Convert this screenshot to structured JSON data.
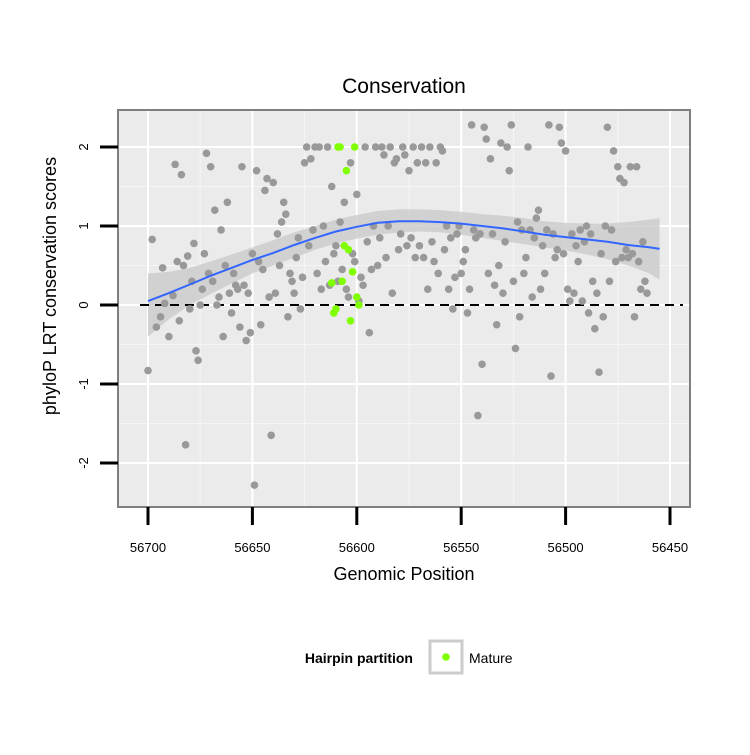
{
  "chart_data": {
    "type": "scatter",
    "title": "Conservation",
    "xlabel": "Genomic Position",
    "ylabel": "phyloP LRT conservation scores",
    "x_reversed": true,
    "xlim": [
      56450,
      56700
    ],
    "ylim": [
      -2.5,
      2.5
    ],
    "x_ticks": [
      56700,
      56650,
      56600,
      56550,
      56500,
      56450
    ],
    "y_ticks": [
      -2,
      -1,
      0,
      1,
      2
    ],
    "reference_line": {
      "y": 0,
      "style": "dashed",
      "color": "#000000"
    },
    "grid": true,
    "legend": {
      "title": "Hairpin partition",
      "entries": [
        {
          "label": "Mature",
          "color": "#7fff00"
        }
      ],
      "placement": "bottom"
    },
    "colors": {
      "points": "#999999",
      "mature": "#7fff00",
      "smooth": "#3366ff",
      "ribbon": "#cccccc"
    },
    "series": [
      {
        "name": "",
        "kind": "points",
        "points": [
          [
            56700,
            -0.83
          ],
          [
            56698,
            0.83
          ],
          [
            56696,
            -0.28
          ],
          [
            56694,
            -0.15
          ],
          [
            56693,
            0.47
          ],
          [
            56692,
            0.02
          ],
          [
            56690,
            -0.4
          ],
          [
            56688,
            0.12
          ],
          [
            56687,
            1.78
          ],
          [
            56686,
            0.55
          ],
          [
            56685,
            -0.2
          ],
          [
            56684,
            1.65
          ],
          [
            56683,
            0.5
          ],
          [
            56682,
            -1.77
          ],
          [
            56681,
            0.62
          ],
          [
            56680,
            -0.05
          ],
          [
            56679,
            0.3
          ],
          [
            56678,
            0.78
          ],
          [
            56677,
            -0.58
          ],
          [
            56676,
            -0.7
          ],
          [
            56675,
            0.0
          ],
          [
            56674,
            0.2
          ],
          [
            56673,
            0.65
          ],
          [
            56672,
            1.92
          ],
          [
            56671,
            0.4
          ],
          [
            56670,
            1.75
          ],
          [
            56669,
            0.3
          ],
          [
            56668,
            1.2
          ],
          [
            56667,
            0.0
          ],
          [
            56666,
            0.1
          ],
          [
            56665,
            0.95
          ],
          [
            56664,
            -0.4
          ],
          [
            56663,
            0.5
          ],
          [
            56662,
            1.3
          ],
          [
            56661,
            0.15
          ],
          [
            56660,
            -0.1
          ],
          [
            56659,
            0.4
          ],
          [
            56658,
            0.25
          ],
          [
            56657,
            0.2
          ],
          [
            56656,
            -0.28
          ],
          [
            56655,
            1.75
          ],
          [
            56654,
            0.25
          ],
          [
            56653,
            -0.45
          ],
          [
            56652,
            0.15
          ],
          [
            56651,
            -0.35
          ],
          [
            56650,
            0.65
          ],
          [
            56649,
            -2.28
          ],
          [
            56648,
            1.7
          ],
          [
            56647,
            0.55
          ],
          [
            56646,
            -0.25
          ],
          [
            56645,
            0.45
          ],
          [
            56644,
            1.45
          ],
          [
            56643,
            1.6
          ],
          [
            56642,
            0.1
          ],
          [
            56641,
            -1.65
          ],
          [
            56640,
            1.55
          ],
          [
            56639,
            0.15
          ],
          [
            56638,
            0.9
          ],
          [
            56637,
            0.5
          ],
          [
            56636,
            1.05
          ],
          [
            56635,
            1.3
          ],
          [
            56634,
            1.15
          ],
          [
            56633,
            -0.15
          ],
          [
            56632,
            0.4
          ],
          [
            56631,
            0.3
          ],
          [
            56630,
            0.15
          ],
          [
            56629,
            0.6
          ],
          [
            56628,
            0.85
          ],
          [
            56627,
            -0.05
          ],
          [
            56626,
            0.35
          ],
          [
            56625,
            1.8
          ],
          [
            56624,
            2.0
          ],
          [
            56623,
            0.75
          ],
          [
            56622,
            1.85
          ],
          [
            56621,
            0.95
          ],
          [
            56620,
            2.0
          ],
          [
            56619,
            0.4
          ],
          [
            56618,
            2.0
          ],
          [
            56617,
            0.2
          ],
          [
            56616,
            1.0
          ],
          [
            56615,
            0.55
          ],
          [
            56614,
            2.0
          ],
          [
            56613,
            0.25
          ],
          [
            56612,
            1.5
          ],
          [
            56611,
            0.65
          ],
          [
            56610,
            0.75
          ],
          [
            56609,
            0.3
          ],
          [
            56608,
            1.05
          ],
          [
            56607,
            0.45
          ],
          [
            56606,
            1.3
          ],
          [
            56605,
            0.2
          ],
          [
            56604,
            0.1
          ],
          [
            56603,
            1.8
          ],
          [
            56602,
            0.65
          ],
          [
            56601,
            0.55
          ],
          [
            56600,
            1.4
          ],
          [
            56599,
            0.05
          ],
          [
            56598,
            0.35
          ],
          [
            56597,
            0.25
          ],
          [
            56596,
            2.0
          ],
          [
            56595,
            0.8
          ],
          [
            56594,
            -0.35
          ],
          [
            56593,
            0.45
          ],
          [
            56592,
            1.0
          ],
          [
            56591,
            2.0
          ],
          [
            56590,
            0.5
          ],
          [
            56589,
            0.85
          ],
          [
            56588,
            2.0
          ],
          [
            56587,
            1.9
          ],
          [
            56586,
            0.6
          ],
          [
            56585,
            1.0
          ],
          [
            56584,
            2.0
          ],
          [
            56583,
            0.15
          ],
          [
            56582,
            1.8
          ],
          [
            56581,
            1.85
          ],
          [
            56580,
            0.7
          ],
          [
            56579,
            0.9
          ],
          [
            56578,
            2.0
          ],
          [
            56577,
            1.9
          ],
          [
            56576,
            0.75
          ],
          [
            56575,
            1.7
          ],
          [
            56574,
            0.85
          ],
          [
            56573,
            2.0
          ],
          [
            56572,
            0.6
          ],
          [
            56571,
            1.8
          ],
          [
            56570,
            0.75
          ],
          [
            56569,
            2.0
          ],
          [
            56568,
            0.6
          ],
          [
            56567,
            1.8
          ],
          [
            56566,
            0.2
          ],
          [
            56565,
            2.0
          ],
          [
            56564,
            0.8
          ],
          [
            56563,
            0.55
          ],
          [
            56562,
            1.8
          ],
          [
            56561,
            0.4
          ],
          [
            56560,
            2.0
          ],
          [
            56559,
            1.95
          ],
          [
            56558,
            0.7
          ],
          [
            56557,
            1.0
          ],
          [
            56556,
            0.2
          ],
          [
            56555,
            0.85
          ],
          [
            56554,
            -0.05
          ],
          [
            56553,
            0.35
          ],
          [
            56552,
            0.9
          ],
          [
            56551,
            1.0
          ],
          [
            56550,
            0.4
          ],
          [
            56549,
            0.55
          ],
          [
            56548,
            0.7
          ],
          [
            56547,
            -0.1
          ],
          [
            56546,
            0.2
          ],
          [
            56545,
            2.28
          ],
          [
            56544,
            0.95
          ],
          [
            56543,
            0.85
          ],
          [
            56542,
            -1.4
          ],
          [
            56541,
            0.9
          ],
          [
            56540,
            -0.75
          ],
          [
            56539,
            2.25
          ],
          [
            56538,
            2.1
          ],
          [
            56537,
            0.4
          ],
          [
            56536,
            1.85
          ],
          [
            56535,
            0.9
          ],
          [
            56534,
            0.25
          ],
          [
            56533,
            -0.25
          ],
          [
            56532,
            0.5
          ],
          [
            56531,
            2.05
          ],
          [
            56530,
            0.15
          ],
          [
            56529,
            0.8
          ],
          [
            56528,
            2.0
          ],
          [
            56527,
            1.7
          ],
          [
            56526,
            2.28
          ],
          [
            56525,
            0.3
          ],
          [
            56524,
            -0.55
          ],
          [
            56523,
            1.05
          ],
          [
            56522,
            -0.15
          ],
          [
            56521,
            0.95
          ],
          [
            56520,
            0.4
          ],
          [
            56519,
            0.6
          ],
          [
            56518,
            2.0
          ],
          [
            56517,
            0.95
          ],
          [
            56516,
            0.1
          ],
          [
            56515,
            0.85
          ],
          [
            56514,
            1.1
          ],
          [
            56513,
            1.2
          ],
          [
            56512,
            0.2
          ],
          [
            56511,
            0.75
          ],
          [
            56510,
            0.4
          ],
          [
            56509,
            0.95
          ],
          [
            56508,
            2.28
          ],
          [
            56507,
            -0.9
          ],
          [
            56506,
            0.9
          ],
          [
            56505,
            0.6
          ],
          [
            56504,
            0.7
          ],
          [
            56503,
            2.25
          ],
          [
            56502,
            2.05
          ],
          [
            56501,
            0.65
          ],
          [
            56500,
            1.95
          ],
          [
            56499,
            0.2
          ],
          [
            56498,
            0.05
          ],
          [
            56497,
            0.9
          ],
          [
            56496,
            0.15
          ],
          [
            56495,
            0.75
          ],
          [
            56494,
            0.55
          ],
          [
            56493,
            0.95
          ],
          [
            56492,
            0.05
          ],
          [
            56491,
            0.8
          ],
          [
            56490,
            1.0
          ],
          [
            56489,
            -0.1
          ],
          [
            56488,
            0.9
          ],
          [
            56487,
            0.3
          ],
          [
            56486,
            -0.3
          ],
          [
            56485,
            0.15
          ],
          [
            56484,
            -0.85
          ],
          [
            56483,
            0.65
          ],
          [
            56482,
            -0.15
          ],
          [
            56481,
            1.0
          ],
          [
            56480,
            2.25
          ],
          [
            56479,
            0.3
          ],
          [
            56478,
            0.95
          ],
          [
            56477,
            1.95
          ],
          [
            56476,
            0.55
          ],
          [
            56475,
            1.75
          ],
          [
            56474,
            1.6
          ],
          [
            56473,
            0.6
          ],
          [
            56472,
            1.55
          ],
          [
            56471,
            0.7
          ],
          [
            56470,
            0.6
          ],
          [
            56469,
            1.75
          ],
          [
            56468,
            0.65
          ],
          [
            56467,
            -0.15
          ],
          [
            56466,
            1.75
          ],
          [
            56465,
            0.55
          ],
          [
            56464,
            0.2
          ],
          [
            56463,
            0.8
          ],
          [
            56462,
            0.3
          ],
          [
            56461,
            0.15
          ]
        ]
      },
      {
        "name": "Mature",
        "kind": "points",
        "points": [
          [
            56612,
            0.28
          ],
          [
            56611,
            -0.1
          ],
          [
            56610,
            -0.05
          ],
          [
            56609,
            2.0
          ],
          [
            56608,
            2.0
          ],
          [
            56607,
            0.3
          ],
          [
            56606,
            0.75
          ],
          [
            56605,
            1.7
          ],
          [
            56604,
            0.7
          ],
          [
            56603,
            -0.2
          ],
          [
            56602,
            0.42
          ],
          [
            56601,
            2.0
          ],
          [
            56600,
            0.1
          ],
          [
            56599,
            0.0
          ]
        ]
      },
      {
        "name": "",
        "kind": "loess",
        "x": [
          56700,
          56690,
          56680,
          56670,
          56660,
          56650,
          56640,
          56630,
          56620,
          56610,
          56600,
          56590,
          56580,
          56570,
          56560,
          56550,
          56540,
          56530,
          56520,
          56510,
          56500,
          56490,
          56480,
          56470,
          56460,
          56455
        ],
        "y": [
          0.05,
          0.15,
          0.26,
          0.37,
          0.47,
          0.57,
          0.66,
          0.76,
          0.85,
          0.93,
          0.99,
          1.04,
          1.06,
          1.06,
          1.05,
          1.03,
          1.0,
          0.97,
          0.93,
          0.89,
          0.86,
          0.83,
          0.8,
          0.76,
          0.73,
          0.71
        ],
        "lower": [
          -0.4,
          -0.18,
          0.0,
          0.14,
          0.27,
          0.4,
          0.5,
          0.6,
          0.7,
          0.78,
          0.84,
          0.89,
          0.92,
          0.93,
          0.92,
          0.89,
          0.85,
          0.81,
          0.77,
          0.73,
          0.69,
          0.64,
          0.58,
          0.5,
          0.4,
          0.32
        ],
        "upper": [
          0.4,
          0.42,
          0.47,
          0.55,
          0.64,
          0.73,
          0.82,
          0.92,
          1.0,
          1.08,
          1.14,
          1.19,
          1.21,
          1.21,
          1.2,
          1.18,
          1.15,
          1.13,
          1.1,
          1.06,
          1.04,
          1.03,
          1.03,
          1.05,
          1.08,
          1.1
        ]
      }
    ]
  }
}
